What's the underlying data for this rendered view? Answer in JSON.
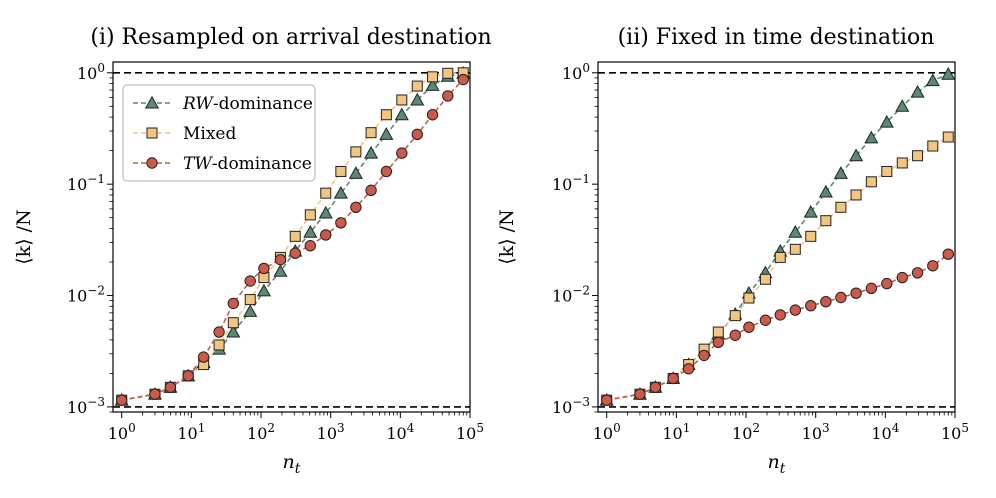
{
  "chart_data": [
    {
      "type": "line",
      "title": "(i) Resampled on arrival destination",
      "xlabel": "n",
      "xlabel_sub": "t",
      "ylabel": "⟨k⟩ /N",
      "xscale": "log",
      "yscale": "log",
      "xlim": [
        0.75,
        100000
      ],
      "ylim": [
        0.0009,
        1.25
      ],
      "x_ticks": [
        {
          "v": 1,
          "base": "10",
          "exp": "0"
        },
        {
          "v": 10,
          "base": "10",
          "exp": "1"
        },
        {
          "v": 100,
          "base": "10",
          "exp": "2"
        },
        {
          "v": 1000,
          "base": "10",
          "exp": "3"
        },
        {
          "v": 10000,
          "base": "10",
          "exp": "4"
        },
        {
          "v": 100000,
          "base": "10",
          "exp": "5"
        }
      ],
      "y_ticks": [
        {
          "v": 0.001,
          "base": "10",
          "exp": "−3"
        },
        {
          "v": 0.01,
          "base": "10",
          "exp": "−2"
        },
        {
          "v": 0.1,
          "base": "10",
          "exp": "−1"
        },
        {
          "v": 1,
          "base": "10",
          "exp": "0"
        }
      ],
      "hlines": [
        1,
        0.001
      ],
      "legend": {
        "position": "top-left"
      },
      "x": [
        1,
        3,
        5,
        9,
        15,
        25,
        40,
        70,
        110,
        190,
        310,
        510,
        850,
        1400,
        2300,
        3800,
        6300,
        10500,
        17500,
        29000,
        48000,
        80000
      ],
      "series": [
        {
          "name": "RW",
          "name_suffix": "-dominance",
          "italic": true,
          "color": "#5a8a72",
          "marker": "triangle",
          "values": [
            0.00115,
            0.0013,
            0.0015,
            0.0019,
            0.0025,
            0.0033,
            0.0047,
            0.0072,
            0.011,
            0.0165,
            0.025,
            0.037,
            0.055,
            0.083,
            0.125,
            0.19,
            0.28,
            0.42,
            0.57,
            0.77,
            0.93,
            0.99
          ]
        },
        {
          "name": "Mixed",
          "name_suffix": "",
          "italic": false,
          "color": "#f2c580",
          "marker": "square",
          "values": [
            0.00115,
            0.0013,
            0.0015,
            0.0019,
            0.0024,
            0.0036,
            0.0057,
            0.0092,
            0.0145,
            0.022,
            0.034,
            0.053,
            0.083,
            0.13,
            0.195,
            0.29,
            0.42,
            0.57,
            0.76,
            0.92,
            0.99,
            1.0
          ]
        },
        {
          "name": "TW",
          "name_suffix": "-dominance",
          "italic": true,
          "color": "#cc5a4a",
          "marker": "circle",
          "values": [
            0.00115,
            0.0013,
            0.0015,
            0.0019,
            0.0028,
            0.0047,
            0.0085,
            0.0135,
            0.0175,
            0.021,
            0.024,
            0.028,
            0.035,
            0.045,
            0.062,
            0.088,
            0.13,
            0.19,
            0.28,
            0.42,
            0.62,
            0.87
          ]
        }
      ]
    },
    {
      "type": "line",
      "title": "(ii) Fixed in time destination",
      "xlabel": "n",
      "xlabel_sub": "t",
      "ylabel": "⟨k⟩ /N",
      "xscale": "log",
      "yscale": "log",
      "xlim": [
        0.75,
        100000
      ],
      "ylim": [
        0.0009,
        1.25
      ],
      "x_ticks": [
        {
          "v": 1,
          "base": "10",
          "exp": "0"
        },
        {
          "v": 10,
          "base": "10",
          "exp": "1"
        },
        {
          "v": 100,
          "base": "10",
          "exp": "2"
        },
        {
          "v": 1000,
          "base": "10",
          "exp": "3"
        },
        {
          "v": 10000,
          "base": "10",
          "exp": "4"
        },
        {
          "v": 100000,
          "base": "10",
          "exp": "5"
        }
      ],
      "y_ticks": [
        {
          "v": 0.001,
          "base": "10",
          "exp": "−3"
        },
        {
          "v": 0.01,
          "base": "10",
          "exp": "−2"
        },
        {
          "v": 0.1,
          "base": "10",
          "exp": "−1"
        },
        {
          "v": 1,
          "base": "10",
          "exp": "0"
        }
      ],
      "hlines": [
        1,
        0.001
      ],
      "x": [
        1,
        3,
        5,
        9,
        15,
        25,
        40,
        70,
        110,
        190,
        310,
        510,
        850,
        1400,
        2300,
        3800,
        6300,
        10500,
        17500,
        29000,
        48000,
        80000
      ],
      "series": [
        {
          "name": "RW",
          "name_suffix": "-dominance",
          "italic": true,
          "color": "#5a8a72",
          "marker": "triangle",
          "values": [
            0.00115,
            0.0013,
            0.0015,
            0.0018,
            0.0024,
            0.0032,
            0.0045,
            0.0068,
            0.0105,
            0.016,
            0.025,
            0.037,
            0.056,
            0.085,
            0.125,
            0.18,
            0.26,
            0.36,
            0.5,
            0.67,
            0.85,
            0.97
          ]
        },
        {
          "name": "Mixed",
          "name_suffix": "",
          "italic": false,
          "color": "#f2c580",
          "marker": "square",
          "values": [
            0.00115,
            0.0013,
            0.0015,
            0.0018,
            0.0024,
            0.0033,
            0.0047,
            0.0066,
            0.0095,
            0.014,
            0.022,
            0.026,
            0.034,
            0.047,
            0.062,
            0.08,
            0.105,
            0.13,
            0.155,
            0.18,
            0.22,
            0.265
          ]
        },
        {
          "name": "TW",
          "name_suffix": "-dominance",
          "italic": true,
          "color": "#cc5a4a",
          "marker": "circle",
          "values": [
            0.00115,
            0.0013,
            0.0015,
            0.0018,
            0.0022,
            0.0029,
            0.0038,
            0.0044,
            0.0052,
            0.006,
            0.0067,
            0.0074,
            0.0081,
            0.0088,
            0.0096,
            0.0105,
            0.0116,
            0.0128,
            0.0145,
            0.016,
            0.0185,
            0.0235
          ]
        }
      ]
    }
  ]
}
